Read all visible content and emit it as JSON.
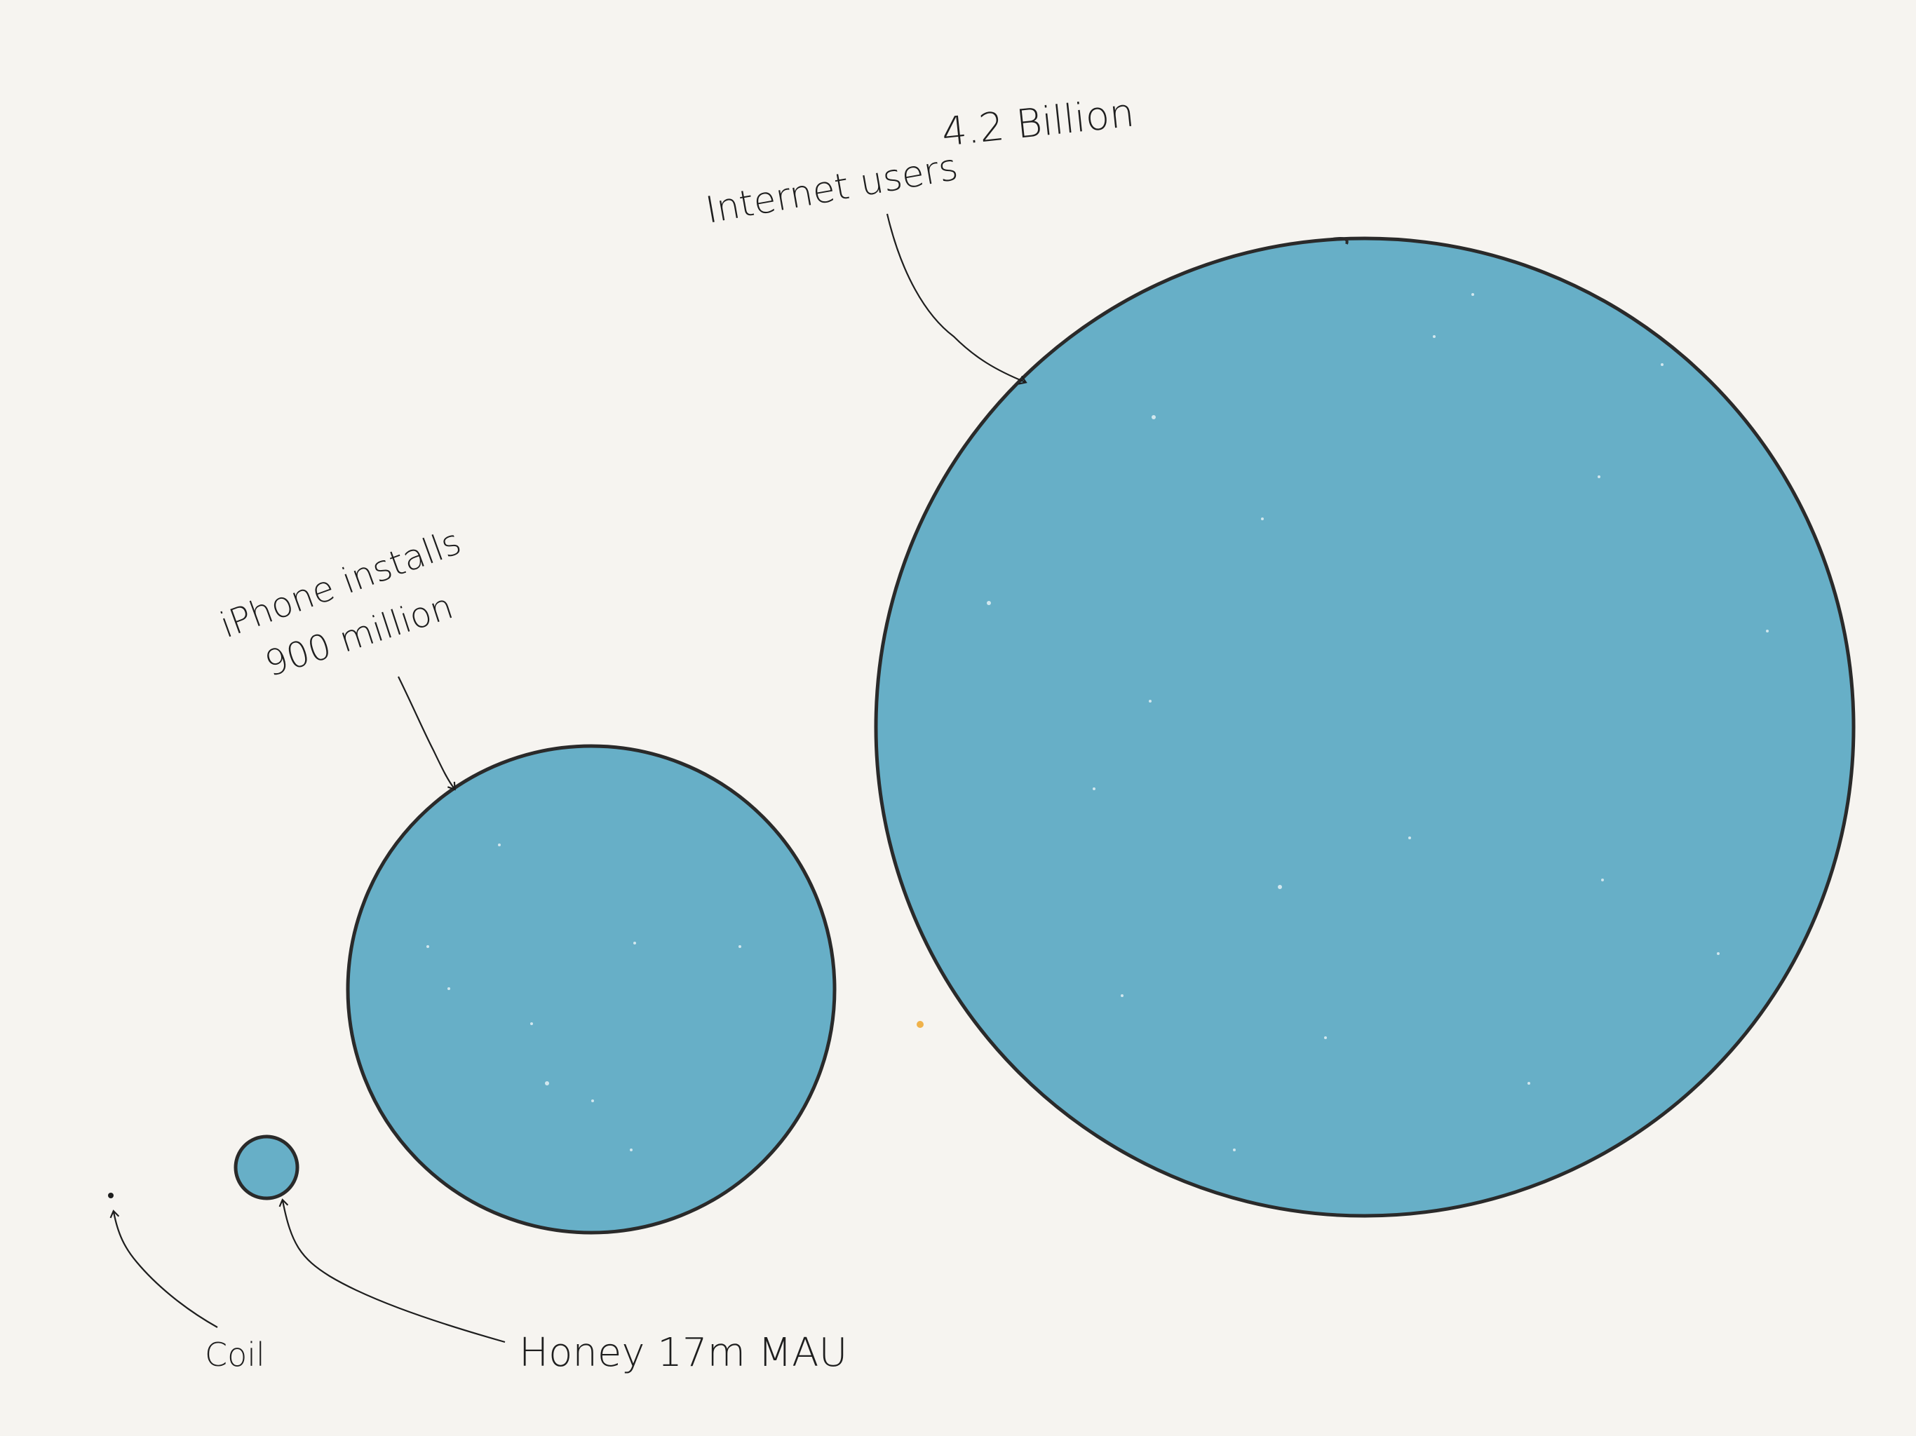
{
  "diagram": {
    "colors": {
      "background": "#f6f4f0",
      "circle_fill": "#67afc7",
      "outline": "#2a2a2a",
      "accent_dot": "#f0b24a"
    },
    "items": [
      {
        "id": "internet",
        "label_line1": "Internet users",
        "label_line2": "4.2 Billion"
      },
      {
        "id": "iphone",
        "label_line1": "iPhone installs",
        "label_line2": "900 million"
      },
      {
        "id": "honey",
        "label_line1": "Honey 17m MAU"
      },
      {
        "id": "coil",
        "label_line1": "Coil"
      }
    ]
  }
}
